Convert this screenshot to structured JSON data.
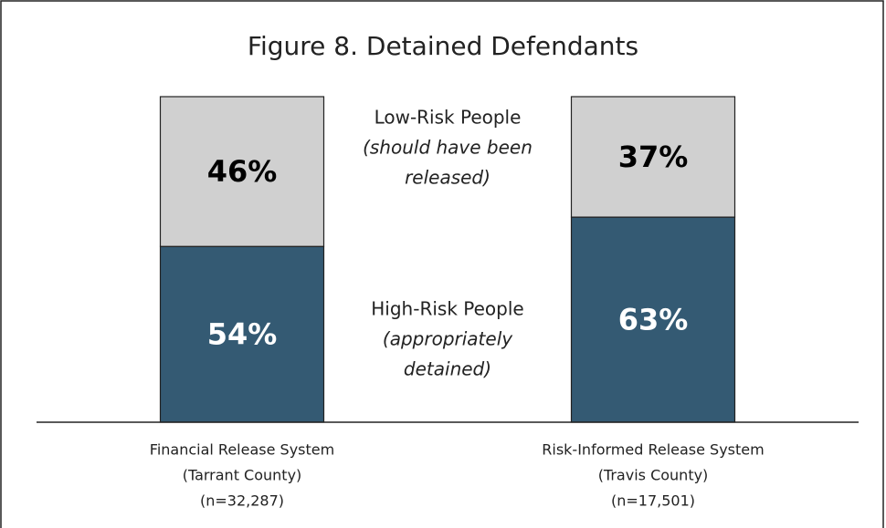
{
  "chart_data": {
    "type": "stacked_bar",
    "title": "Figure 8.  Detained Defendants",
    "categories": [
      [
        "Financial Release System",
        "(Tarrant County)",
        "(n=32,287)"
      ],
      [
        "Risk-Informed Release System",
        "(Travis County)",
        "(n=17,501)"
      ]
    ],
    "ylim": [
      0,
      100
    ],
    "series": [
      {
        "name": "High-Risk People",
        "description": [
          "(appropriately",
          "detained)"
        ],
        "color": "#345a73",
        "label_color": "#ffffff",
        "values": [
          54,
          63
        ],
        "value_labels": [
          "54%",
          "63%"
        ]
      },
      {
        "name": "Low-Risk People",
        "description": [
          "(should have been",
          "released)"
        ],
        "color": "#d0d0d0",
        "label_color": "#000000",
        "values": [
          46,
          37
        ],
        "value_labels": [
          "46%",
          "37%"
        ]
      }
    ]
  }
}
